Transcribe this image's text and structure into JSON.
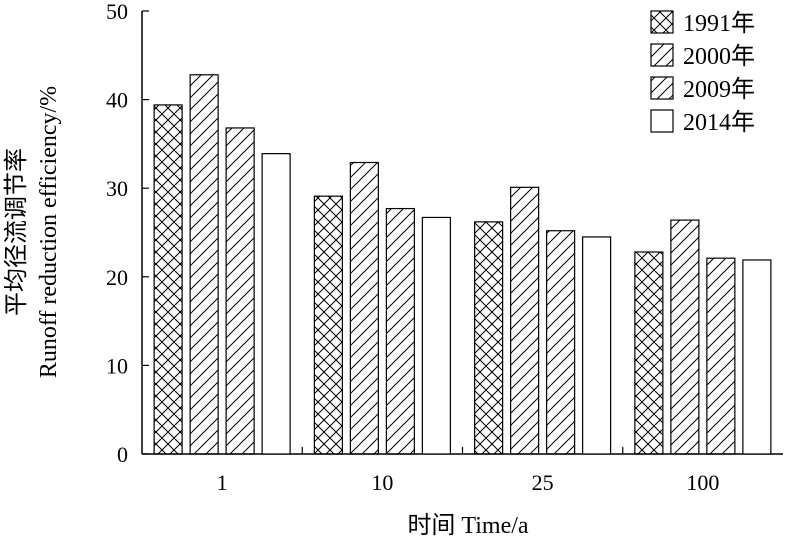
{
  "chart_data": {
    "type": "bar",
    "categories": [
      "1",
      "10",
      "25",
      "100"
    ],
    "series": [
      {
        "name": "1991年",
        "values": [
          39.4,
          29.1,
          26.2,
          22.8
        ],
        "pattern": "crosshatch"
      },
      {
        "name": "2000年",
        "values": [
          42.8,
          32.9,
          30.1,
          26.4
        ],
        "pattern": "diagonal"
      },
      {
        "name": "2009年",
        "values": [
          36.8,
          27.7,
          25.2,
          22.1
        ],
        "pattern": "diagonal"
      },
      {
        "name": "2014年",
        "values": [
          33.9,
          26.7,
          24.5,
          21.9
        ],
        "pattern": "none"
      }
    ],
    "xlabel": "时间 Time/a",
    "ylabel_line1": "平均径流调节率",
    "ylabel_line2": "Runoff reduction efficiency/%",
    "ylim": [
      0,
      50
    ],
    "yticks": [
      0,
      10,
      20,
      30,
      40,
      50
    ],
    "grid": false,
    "legend_position": "top-right"
  }
}
